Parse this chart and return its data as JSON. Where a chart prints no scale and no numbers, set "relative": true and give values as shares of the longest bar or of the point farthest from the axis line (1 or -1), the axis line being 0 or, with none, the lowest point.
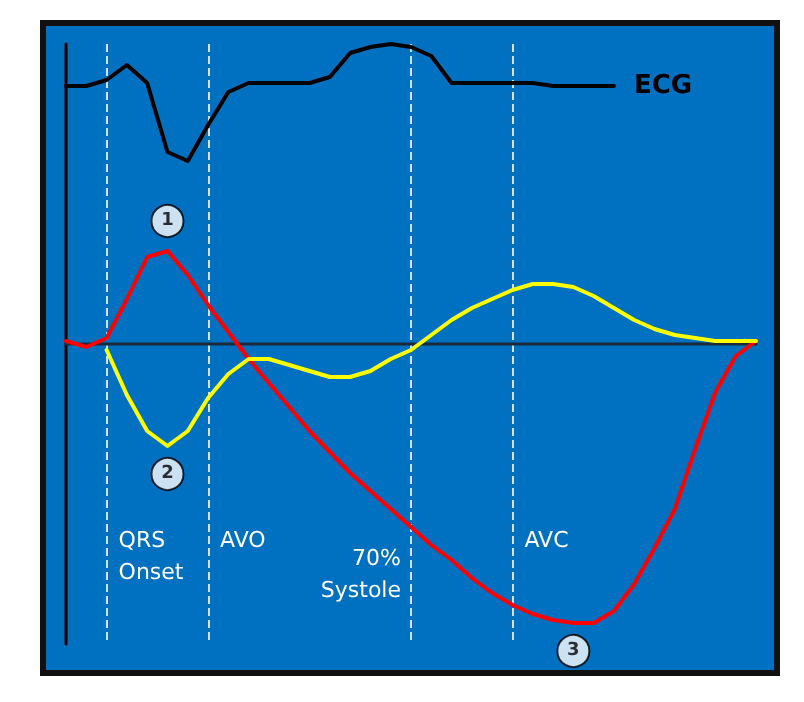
{
  "chart_data": {
    "type": "line",
    "relative": true,
    "line_style": "solid",
    "categories": [
      null,
      null,
      null,
      null,
      null,
      null,
      null,
      null,
      null,
      null,
      null,
      null,
      null,
      null,
      null,
      null,
      null,
      null,
      null,
      null,
      null,
      null,
      null,
      null,
      null,
      null,
      null,
      null,
      null,
      null,
      null,
      null,
      null,
      null,
      null
    ],
    "series": [
      {
        "name": "ECG",
        "color": "#000000",
        "values": [
          0.86,
          0.86,
          0.88,
          0.93,
          0.87,
          0.64,
          0.61,
          0.73,
          0.84,
          0.87,
          0.87,
          0.87,
          0.87,
          0.89,
          0.97,
          0.99,
          1.0,
          0.99,
          0.96,
          0.87,
          0.87,
          0.87,
          0.87,
          0.87,
          0.86,
          0.86,
          0.86,
          0.86,
          null,
          null,
          null,
          null,
          null,
          null,
          null
        ]
      },
      {
        "color": "#ff0000",
        "values": [
          0.01,
          -0.01,
          0.02,
          0.15,
          0.29,
          0.31,
          0.23,
          0.13,
          0.04,
          -0.05,
          -0.13,
          -0.21,
          -0.29,
          -0.36,
          -0.43,
          -0.49,
          -0.55,
          -0.61,
          -0.67,
          -0.72,
          -0.78,
          -0.83,
          -0.87,
          -0.9,
          -0.92,
          -0.93,
          -0.93,
          -0.89,
          -0.8,
          -0.68,
          -0.55,
          -0.35,
          -0.16,
          -0.04,
          0.01
        ]
      },
      {
        "color": "#ffff00",
        "values": [
          null,
          null,
          -0.02,
          -0.17,
          -0.29,
          -0.34,
          -0.29,
          -0.18,
          -0.1,
          -0.05,
          -0.05,
          -0.07,
          -0.09,
          -0.11,
          -0.11,
          -0.09,
          -0.05,
          -0.02,
          0.03,
          0.08,
          0.12,
          0.15,
          0.18,
          0.2,
          0.2,
          0.19,
          0.16,
          0.12,
          0.08,
          0.05,
          0.03,
          0.02,
          0.01,
          0.01,
          0.01
        ]
      }
    ],
    "annotations": [
      {
        "text": "1",
        "y": 0.31
      },
      {
        "text": "2",
        "y": -0.34
      },
      {
        "text": "3",
        "y": -0.93
      },
      "QRS Onset",
      "AVO",
      "70% Systole",
      "AVC"
    ],
    "grid": "x"
  }
}
